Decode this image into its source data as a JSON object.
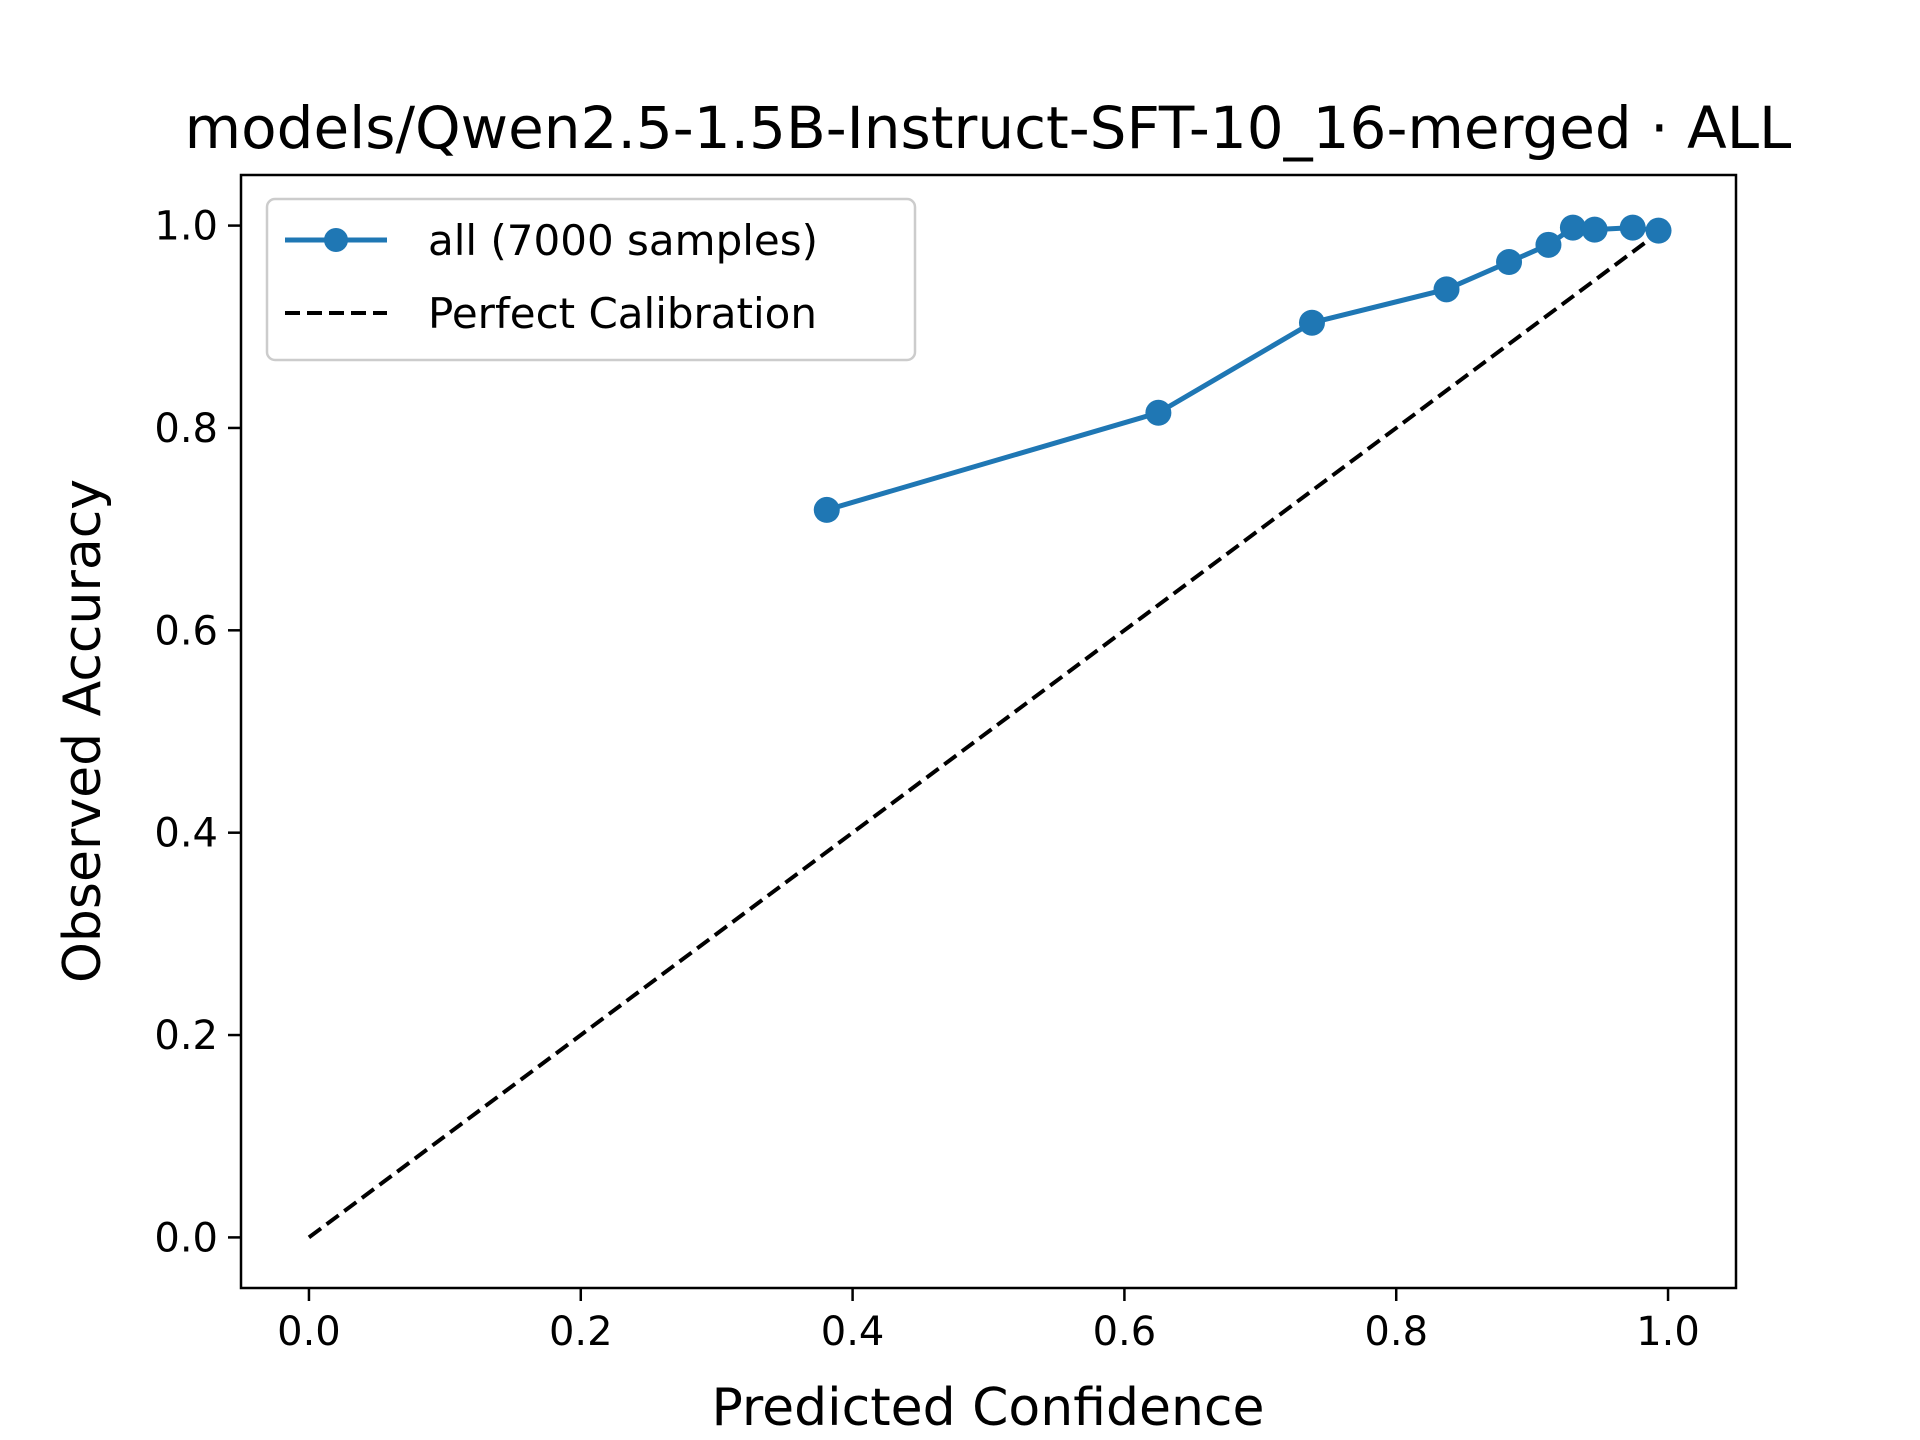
{
  "chart_data": {
    "type": "line",
    "title": "models/Qwen2.5-1.5B-Instruct-SFT-10_16-merged · ALL",
    "xlabel": "Predicted Confidence",
    "ylabel": "Observed Accuracy",
    "xlim": [
      -0.05,
      1.05
    ],
    "ylim": [
      -0.05,
      1.05
    ],
    "xticks": [
      0.0,
      0.2,
      0.4,
      0.6,
      0.8,
      1.0
    ],
    "xtick_labels": [
      "0.0",
      "0.2",
      "0.4",
      "0.6",
      "0.8",
      "1.0"
    ],
    "yticks": [
      0.0,
      0.2,
      0.4,
      0.6,
      0.8,
      1.0
    ],
    "ytick_labels": [
      "0.0",
      "0.2",
      "0.4",
      "0.6",
      "0.8",
      "1.0"
    ],
    "grid": false,
    "legend_position": "upper-left",
    "series": [
      {
        "name": "all (7000 samples)",
        "style": "solid-line-with-circle-markers",
        "color": "#1f77b4",
        "x": [
          0.381,
          0.625,
          0.738,
          0.837,
          0.883,
          0.912,
          0.93,
          0.946,
          0.974,
          0.993
        ],
        "y": [
          0.719,
          0.815,
          0.904,
          0.937,
          0.964,
          0.981,
          0.998,
          0.996,
          0.998,
          0.995
        ]
      },
      {
        "name": "Perfect Calibration",
        "style": "dashed-line",
        "color": "#000000",
        "x": [
          0.0,
          1.0
        ],
        "y": [
          0.0,
          1.0
        ]
      }
    ]
  }
}
